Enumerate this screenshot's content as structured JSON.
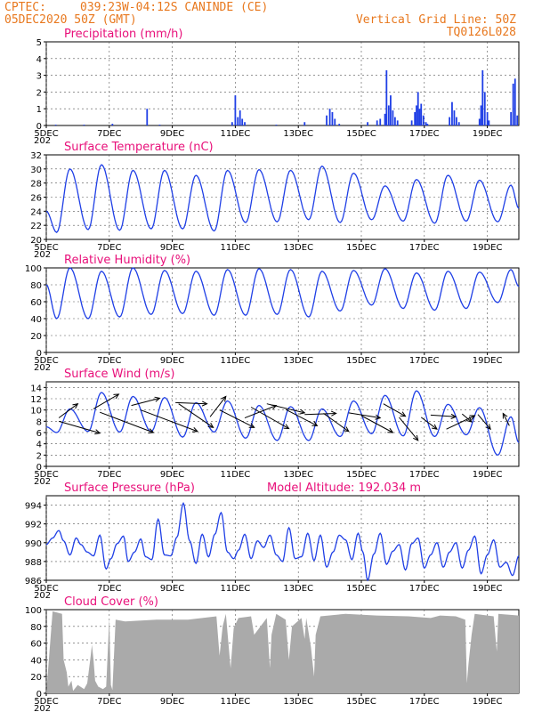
{
  "header": {
    "org": "CPTEC:",
    "location": "039:23W-04:12S  CANINDE (CE)",
    "date": "05DEC2020 50Z (GMT)",
    "grid_label": "Vertical Grid Line: 50Z",
    "model_code": "TQ0126L028"
  },
  "x_axis": {
    "start_day": 5,
    "end_day": 20,
    "tick_days": [
      5,
      7,
      9,
      11,
      13,
      15,
      17,
      19
    ],
    "tick_labels": [
      "5DEC",
      "7DEC",
      "9DEC",
      "11DEC",
      "13DEC",
      "15DEC",
      "17DEC",
      "19DEC"
    ],
    "year_fragment": "202"
  },
  "chart_data": [
    {
      "type": "bar",
      "id": "precip",
      "title": "Precipitation (mm/h)",
      "ylim": [
        0,
        5
      ],
      "yticks": [
        0,
        1,
        2,
        3,
        4,
        5
      ],
      "color": "#1f3fe6",
      "bars": [
        [
          5.3,
          0.05
        ],
        [
          6.2,
          0.05
        ],
        [
          7.1,
          0.1
        ],
        [
          8.2,
          1.0
        ],
        [
          8.6,
          0.05
        ],
        [
          10.9,
          0.2
        ],
        [
          11.0,
          1.8
        ],
        [
          11.08,
          0.5
        ],
        [
          11.15,
          0.9
        ],
        [
          11.22,
          0.4
        ],
        [
          11.3,
          0.2
        ],
        [
          12.3,
          0.05
        ],
        [
          13.2,
          0.2
        ],
        [
          13.9,
          0.6
        ],
        [
          14.0,
          1.0
        ],
        [
          14.08,
          0.8
        ],
        [
          14.16,
          0.4
        ],
        [
          14.3,
          0.1
        ],
        [
          15.2,
          0.2
        ],
        [
          15.5,
          0.3
        ],
        [
          15.6,
          0.4
        ],
        [
          15.75,
          0.7
        ],
        [
          15.8,
          3.3
        ],
        [
          15.87,
          1.2
        ],
        [
          15.93,
          1.8
        ],
        [
          16.0,
          0.9
        ],
        [
          16.07,
          0.5
        ],
        [
          16.15,
          0.3
        ],
        [
          16.6,
          0.3
        ],
        [
          16.7,
          0.8
        ],
        [
          16.75,
          1.2
        ],
        [
          16.8,
          2.0
        ],
        [
          16.85,
          1.0
        ],
        [
          16.9,
          1.3
        ],
        [
          16.97,
          0.6
        ],
        [
          17.05,
          0.2
        ],
        [
          17.1,
          0.1
        ],
        [
          17.8,
          0.5
        ],
        [
          17.88,
          1.4
        ],
        [
          17.95,
          0.9
        ],
        [
          18.02,
          0.5
        ],
        [
          18.1,
          0.2
        ],
        [
          18.75,
          0.4
        ],
        [
          18.8,
          1.2
        ],
        [
          18.85,
          3.3
        ],
        [
          18.92,
          2.0
        ],
        [
          19.0,
          0.8
        ],
        [
          19.05,
          0.3
        ],
        [
          19.75,
          0.8
        ],
        [
          19.82,
          2.5
        ],
        [
          19.88,
          2.8
        ],
        [
          19.95,
          0.6
        ]
      ]
    },
    {
      "type": "line",
      "id": "temp",
      "title": "Surface Temperature (nC)",
      "ylim": [
        20,
        32
      ],
      "yticks": [
        20,
        22,
        24,
        26,
        28,
        30,
        32
      ],
      "color": "#1f3fe6",
      "maxima": [
        30.0,
        30.6,
        29.8,
        29.8,
        29.1,
        29.8,
        29.9,
        29.8,
        30.4,
        29.4,
        27.6,
        28.5,
        29.1,
        28.4,
        27.7
      ],
      "minima": [
        21.0,
        21.4,
        21.3,
        21.5,
        21.5,
        21.2,
        22.4,
        22.5,
        22.8,
        22.4,
        22.8,
        22.6,
        22.3,
        22.6,
        22.5
      ],
      "start_value": 24.0,
      "end_value": 24.4
    },
    {
      "type": "line",
      "id": "rh",
      "title": "Relative Humidity (%)",
      "ylim": [
        0,
        100
      ],
      "yticks": [
        0,
        20,
        40,
        60,
        80,
        100
      ],
      "color": "#1f3fe6",
      "maxima": [
        100,
        96,
        100,
        97,
        96,
        98,
        99,
        98,
        96,
        97,
        99,
        94,
        96,
        95,
        98
      ],
      "minima": [
        40,
        40,
        42,
        45,
        46,
        44,
        44,
        45,
        42,
        49,
        56,
        52,
        50,
        52,
        59
      ],
      "start_value": 80,
      "end_value": 78
    },
    {
      "type": "line",
      "id": "wind",
      "title": "Surface Wind (m/s)",
      "ylim": [
        0,
        15
      ],
      "yticks": [
        0,
        2,
        4,
        6,
        8,
        10,
        12,
        14
      ],
      "color": "#1f3fe6",
      "maxima": [
        10.2,
        13.1,
        12.4,
        12.2,
        11.3,
        11.6,
        10.8,
        10.6,
        10.2,
        11.6,
        12.6,
        13.4,
        11.0,
        10.4,
        8.8
      ],
      "minima": [
        6.0,
        6.2,
        6.1,
        6.2,
        5.2,
        6.1,
        5.0,
        4.6,
        4.6,
        5.3,
        5.8,
        5.4,
        5.3,
        5.6,
        2.0
      ],
      "start_value": 7.0,
      "end_value": 4.2,
      "arrows": [
        [
          5.4,
          8.6,
          6.0,
          11.1
        ],
        [
          5.4,
          8.0,
          6.7,
          5.9
        ],
        [
          6.5,
          10.2,
          7.3,
          12.8
        ],
        [
          6.7,
          9.6,
          8.4,
          6.0
        ],
        [
          7.7,
          10.8,
          8.6,
          12.1
        ],
        [
          8.0,
          10.0,
          9.8,
          6.2
        ],
        [
          9.1,
          11.3,
          10.1,
          11.1
        ],
        [
          9.2,
          11.1,
          10.3,
          6.9
        ],
        [
          10.2,
          8.8,
          10.7,
          12.4
        ],
        [
          10.5,
          10.0,
          11.6,
          6.9
        ],
        [
          11.3,
          8.6,
          12.3,
          10.8
        ],
        [
          11.5,
          10.5,
          12.7,
          6.7
        ],
        [
          12.0,
          11.1,
          13.2,
          9.5
        ],
        [
          12.6,
          10.1,
          13.6,
          7.2
        ],
        [
          13.2,
          9.2,
          14.2,
          9.4
        ],
        [
          13.8,
          9.4,
          14.6,
          6.2
        ],
        [
          14.6,
          9.5,
          15.6,
          8.6
        ],
        [
          15.0,
          9.0,
          16.0,
          6.0
        ],
        [
          15.7,
          11.1,
          16.4,
          8.9
        ],
        [
          16.2,
          8.7,
          16.8,
          4.6
        ],
        [
          16.9,
          8.7,
          17.4,
          6.6
        ],
        [
          17.2,
          9.1,
          18.0,
          8.8
        ],
        [
          17.7,
          6.6,
          18.6,
          9.0
        ],
        [
          18.2,
          9.3,
          18.5,
          7.9
        ],
        [
          18.7,
          9.2,
          19.1,
          6.6
        ],
        [
          19.7,
          7.2,
          19.5,
          9.4
        ]
      ]
    },
    {
      "type": "line",
      "id": "pres",
      "title": "Surface Pressure (hPa)",
      "subtitle": "Model Altitude: 192.034 m",
      "ylim": [
        986,
        995
      ],
      "yticks": [
        986,
        988,
        990,
        992,
        994
      ],
      "color": "#1f3fe6",
      "series": [
        [
          5.0,
          989.8
        ],
        [
          5.2,
          990.5
        ],
        [
          5.4,
          991.3
        ],
        [
          5.55,
          990.2
        ],
        [
          5.75,
          988.7
        ],
        [
          5.95,
          990.5
        ],
        [
          6.1,
          989.8
        ],
        [
          6.3,
          989.0
        ],
        [
          6.5,
          988.6
        ],
        [
          6.7,
          990.8
        ],
        [
          6.9,
          987.2
        ],
        [
          7.05,
          988.3
        ],
        [
          7.25,
          989.9
        ],
        [
          7.45,
          990.7
        ],
        [
          7.6,
          988.0
        ],
        [
          7.8,
          989.0
        ],
        [
          8.0,
          990.4
        ],
        [
          8.15,
          988.5
        ],
        [
          8.35,
          988.2
        ],
        [
          8.55,
          992.5
        ],
        [
          8.75,
          988.7
        ],
        [
          8.95,
          988.6
        ],
        [
          9.15,
          990.6
        ],
        [
          9.35,
          994.2
        ],
        [
          9.55,
          990.2
        ],
        [
          9.75,
          987.8
        ],
        [
          9.95,
          990.9
        ],
        [
          10.15,
          988.5
        ],
        [
          10.35,
          990.9
        ],
        [
          10.55,
          993.2
        ],
        [
          10.75,
          989.0
        ],
        [
          10.95,
          988.3
        ],
        [
          11.1,
          989.2
        ],
        [
          11.3,
          990.9
        ],
        [
          11.5,
          988.3
        ],
        [
          11.7,
          990.2
        ],
        [
          11.9,
          989.5
        ],
        [
          12.1,
          990.8
        ],
        [
          12.3,
          988.7
        ],
        [
          12.5,
          988.0
        ],
        [
          12.7,
          991.6
        ],
        [
          12.9,
          988.3
        ],
        [
          13.1,
          988.5
        ],
        [
          13.3,
          991.0
        ],
        [
          13.5,
          988.1
        ],
        [
          13.7,
          990.8
        ],
        [
          13.9,
          987.4
        ],
        [
          14.1,
          989.0
        ],
        [
          14.3,
          990.8
        ],
        [
          14.5,
          990.3
        ],
        [
          14.7,
          988.2
        ],
        [
          14.9,
          991.0
        ],
        [
          15.05,
          989.0
        ],
        [
          15.2,
          986.0
        ],
        [
          15.4,
          988.8
        ],
        [
          15.6,
          991.0
        ],
        [
          15.8,
          987.7
        ],
        [
          16.0,
          989.1
        ],
        [
          16.2,
          989.8
        ],
        [
          16.4,
          987.1
        ],
        [
          16.6,
          989.9
        ],
        [
          16.8,
          990.5
        ],
        [
          17.0,
          987.3
        ],
        [
          17.2,
          988.7
        ],
        [
          17.4,
          990.0
        ],
        [
          17.6,
          987.4
        ],
        [
          17.8,
          989.0
        ],
        [
          18.0,
          990.0
        ],
        [
          18.2,
          987.3
        ],
        [
          18.4,
          989.2
        ],
        [
          18.6,
          990.7
        ],
        [
          18.8,
          986.7
        ],
        [
          19.0,
          988.7
        ],
        [
          19.2,
          990.3
        ],
        [
          19.4,
          987.4
        ],
        [
          19.6,
          987.9
        ],
        [
          19.8,
          986.5
        ],
        [
          20.0,
          988.6
        ]
      ]
    },
    {
      "type": "area",
      "id": "cloud",
      "title": "Cloud Cover (%)",
      "ylim": [
        0,
        100
      ],
      "yticks": [
        0,
        20,
        40,
        60,
        80,
        100
      ],
      "color": "#aaaaaa",
      "series": [
        [
          5.0,
          0
        ],
        [
          5.2,
          98
        ],
        [
          5.5,
          95
        ],
        [
          5.55,
          40
        ],
        [
          5.65,
          25
        ],
        [
          5.7,
          8
        ],
        [
          5.8,
          15
        ],
        [
          5.85,
          3
        ],
        [
          6.0,
          10
        ],
        [
          6.2,
          5
        ],
        [
          6.3,
          12
        ],
        [
          6.4,
          42
        ],
        [
          6.45,
          58
        ],
        [
          6.5,
          40
        ],
        [
          6.55,
          15
        ],
        [
          6.65,
          8
        ],
        [
          6.8,
          5
        ],
        [
          6.9,
          8
        ],
        [
          7.0,
          90
        ],
        [
          7.05,
          10
        ],
        [
          7.1,
          4
        ],
        [
          7.2,
          88
        ],
        [
          7.5,
          86
        ],
        [
          8.5,
          88
        ],
        [
          9.5,
          88
        ],
        [
          10.4,
          92
        ],
        [
          10.5,
          45
        ],
        [
          10.6,
          80
        ],
        [
          10.7,
          95
        ],
        [
          10.85,
          30
        ],
        [
          10.95,
          78
        ],
        [
          11.1,
          90
        ],
        [
          11.5,
          92
        ],
        [
          11.6,
          70
        ],
        [
          12.0,
          90
        ],
        [
          12.1,
          30
        ],
        [
          12.15,
          70
        ],
        [
          12.3,
          95
        ],
        [
          12.6,
          88
        ],
        [
          12.7,
          40
        ],
        [
          12.8,
          80
        ],
        [
          13.1,
          90
        ],
        [
          13.2,
          65
        ],
        [
          13.25,
          90
        ],
        [
          13.4,
          55
        ],
        [
          13.5,
          20
        ],
        [
          13.55,
          70
        ],
        [
          13.7,
          92
        ],
        [
          14.5,
          95
        ],
        [
          15.5,
          93
        ],
        [
          16.5,
          92
        ],
        [
          17.2,
          90
        ],
        [
          17.5,
          93
        ],
        [
          18.0,
          92
        ],
        [
          18.3,
          88
        ],
        [
          18.35,
          12
        ],
        [
          18.4,
          35
        ],
        [
          18.5,
          70
        ],
        [
          18.6,
          95
        ],
        [
          19.2,
          92
        ],
        [
          19.3,
          50
        ],
        [
          19.35,
          95
        ],
        [
          20.0,
          93
        ]
      ]
    }
  ]
}
